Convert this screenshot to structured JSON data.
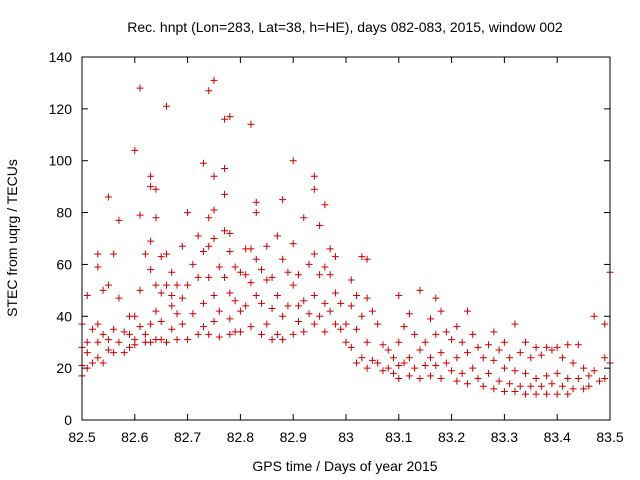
{
  "chart_data": {
    "type": "scatter",
    "title": "Rec. hnpt (Lon=283, Lat=38, h=HE), days 082-083, 2015, window 002",
    "xlabel": "GPS time / Days of year 2015",
    "ylabel": "STEC from uqrg / TECUs",
    "xlim": [
      82.5,
      83.5
    ],
    "ylim": [
      0,
      140
    ],
    "xticks": [
      82.5,
      82.6,
      82.7,
      82.8,
      82.9,
      83,
      83.1,
      83.2,
      83.3,
      83.4,
      83.5
    ],
    "xtick_labels": [
      "82.5",
      "82.6",
      "82.7",
      "82.8",
      "82.9",
      "83",
      "83.1",
      "83.2",
      "83.3",
      "83.4",
      "83.5"
    ],
    "yticks": [
      0,
      20,
      40,
      60,
      80,
      100,
      120,
      140
    ],
    "ytick_labels": [
      "0",
      "20",
      "40",
      "60",
      "80",
      "100",
      "120",
      "140"
    ],
    "marker": "+",
    "marker_color": "#cc0000",
    "series": [
      {
        "name": "STEC",
        "points": [
          [
            82.5,
            37
          ],
          [
            82.5,
            28
          ],
          [
            82.5,
            21
          ],
          [
            82.5,
            17
          ],
          [
            82.51,
            48
          ],
          [
            82.51,
            30
          ],
          [
            82.51,
            26
          ],
          [
            82.51,
            20
          ],
          [
            82.52,
            35
          ],
          [
            82.52,
            22
          ],
          [
            82.53,
            64
          ],
          [
            82.53,
            59
          ],
          [
            82.53,
            37
          ],
          [
            82.53,
            30
          ],
          [
            82.53,
            24
          ],
          [
            82.54,
            22
          ],
          [
            82.54,
            33
          ],
          [
            82.54,
            50
          ],
          [
            82.55,
            86
          ],
          [
            82.55,
            31
          ],
          [
            82.55,
            27
          ],
          [
            82.55,
            52
          ],
          [
            82.56,
            64
          ],
          [
            82.56,
            26
          ],
          [
            82.56,
            35
          ],
          [
            82.57,
            77
          ],
          [
            82.57,
            47
          ],
          [
            82.57,
            30
          ],
          [
            82.58,
            26
          ],
          [
            82.58,
            34
          ],
          [
            82.59,
            40
          ],
          [
            82.59,
            28
          ],
          [
            82.59,
            33
          ],
          [
            82.6,
            40
          ],
          [
            82.6,
            104
          ],
          [
            82.6,
            31
          ],
          [
            82.6,
            29
          ],
          [
            82.61,
            128
          ],
          [
            82.61,
            79
          ],
          [
            82.61,
            50
          ],
          [
            82.61,
            36
          ],
          [
            82.62,
            30
          ],
          [
            82.62,
            64
          ],
          [
            82.62,
            33
          ],
          [
            82.63,
            94
          ],
          [
            82.63,
            90
          ],
          [
            82.63,
            69
          ],
          [
            82.63,
            58
          ],
          [
            82.63,
            37
          ],
          [
            82.63,
            30
          ],
          [
            82.64,
            89
          ],
          [
            82.64,
            78
          ],
          [
            82.64,
            52
          ],
          [
            82.64,
            42
          ],
          [
            82.64,
            31
          ],
          [
            82.65,
            63
          ],
          [
            82.65,
            49
          ],
          [
            82.65,
            38
          ],
          [
            82.65,
            31
          ],
          [
            82.66,
            121
          ],
          [
            82.66,
            64
          ],
          [
            82.66,
            52
          ],
          [
            82.66,
            30
          ],
          [
            82.67,
            57
          ],
          [
            82.67,
            48
          ],
          [
            82.67,
            44
          ],
          [
            82.67,
            35
          ],
          [
            82.68,
            52
          ],
          [
            82.68,
            41
          ],
          [
            82.68,
            31
          ],
          [
            82.69,
            67
          ],
          [
            82.69,
            47
          ],
          [
            82.69,
            37
          ],
          [
            82.7,
            80
          ],
          [
            82.7,
            52
          ],
          [
            82.7,
            31
          ],
          [
            82.71,
            60
          ],
          [
            82.71,
            41
          ],
          [
            82.72,
            71
          ],
          [
            82.72,
            55
          ],
          [
            82.72,
            33
          ],
          [
            82.73,
            99
          ],
          [
            82.73,
            65
          ],
          [
            82.73,
            45
          ],
          [
            82.73,
            36
          ],
          [
            82.74,
            127
          ],
          [
            82.74,
            78
          ],
          [
            82.74,
            67
          ],
          [
            82.74,
            55
          ],
          [
            82.74,
            33
          ],
          [
            82.75,
            131
          ],
          [
            82.75,
            94
          ],
          [
            82.75,
            81
          ],
          [
            82.75,
            70
          ],
          [
            82.75,
            48
          ],
          [
            82.75,
            38
          ],
          [
            82.76,
            59
          ],
          [
            82.76,
            42
          ],
          [
            82.76,
            32
          ],
          [
            82.77,
            116
          ],
          [
            82.77,
            97
          ],
          [
            82.77,
            87
          ],
          [
            82.77,
            73
          ],
          [
            82.77,
            55
          ],
          [
            82.78,
            117
          ],
          [
            82.78,
            72
          ],
          [
            82.78,
            65
          ],
          [
            82.78,
            49
          ],
          [
            82.78,
            39
          ],
          [
            82.78,
            33
          ],
          [
            82.79,
            59
          ],
          [
            82.79,
            46
          ],
          [
            82.79,
            34
          ],
          [
            82.8,
            57
          ],
          [
            82.8,
            42
          ],
          [
            82.8,
            34
          ],
          [
            82.81,
            66
          ],
          [
            82.81,
            56
          ],
          [
            82.81,
            44
          ],
          [
            82.82,
            114
          ],
          [
            82.82,
            66
          ],
          [
            82.82,
            53
          ],
          [
            82.82,
            36
          ],
          [
            82.83,
            84
          ],
          [
            82.83,
            80
          ],
          [
            82.83,
            62
          ],
          [
            82.83,
            48
          ],
          [
            82.84,
            58
          ],
          [
            82.84,
            45
          ],
          [
            82.84,
            33
          ],
          [
            82.85,
            67
          ],
          [
            82.85,
            54
          ],
          [
            82.85,
            37
          ],
          [
            82.86,
            55
          ],
          [
            82.86,
            43
          ],
          [
            82.86,
            31
          ],
          [
            82.87,
            71
          ],
          [
            82.87,
            48
          ],
          [
            82.87,
            33
          ],
          [
            82.88,
            85
          ],
          [
            82.88,
            62
          ],
          [
            82.88,
            40
          ],
          [
            82.88,
            31
          ],
          [
            82.89,
            57
          ],
          [
            82.89,
            44
          ],
          [
            82.9,
            100
          ],
          [
            82.9,
            68
          ],
          [
            82.9,
            52
          ],
          [
            82.9,
            33
          ],
          [
            82.91,
            56
          ],
          [
            82.91,
            44
          ],
          [
            82.91,
            38
          ],
          [
            82.92,
            78
          ],
          [
            82.92,
            46
          ],
          [
            82.92,
            34
          ],
          [
            82.93,
            60
          ],
          [
            82.93,
            41
          ],
          [
            82.94,
            94
          ],
          [
            82.94,
            89
          ],
          [
            82.94,
            64
          ],
          [
            82.94,
            48
          ],
          [
            82.94,
            37
          ],
          [
            82.95,
            75
          ],
          [
            82.95,
            56
          ],
          [
            82.95,
            40
          ],
          [
            82.96,
            83
          ],
          [
            82.96,
            59
          ],
          [
            82.96,
            45
          ],
          [
            82.96,
            34
          ],
          [
            82.97,
            66
          ],
          [
            82.97,
            56
          ],
          [
            82.97,
            42
          ],
          [
            82.98,
            63
          ],
          [
            82.98,
            49
          ],
          [
            82.98,
            37
          ],
          [
            82.99,
            45
          ],
          [
            82.99,
            35
          ],
          [
            83.0,
            37
          ],
          [
            83.0,
            30
          ],
          [
            83.01,
            54
          ],
          [
            83.01,
            44
          ],
          [
            83.01,
            28
          ],
          [
            83.02,
            48
          ],
          [
            83.02,
            35
          ],
          [
            83.02,
            22
          ],
          [
            83.03,
            63
          ],
          [
            83.03,
            40
          ],
          [
            83.03,
            24
          ],
          [
            83.04,
            62
          ],
          [
            83.04,
            47
          ],
          [
            83.04,
            30
          ],
          [
            83.04,
            20
          ],
          [
            83.05,
            42
          ],
          [
            83.05,
            23
          ],
          [
            83.06,
            37
          ],
          [
            83.06,
            22
          ],
          [
            83.07,
            29
          ],
          [
            83.07,
            19
          ],
          [
            83.08,
            27
          ],
          [
            83.08,
            20
          ],
          [
            83.09,
            24
          ],
          [
            83.09,
            18
          ],
          [
            83.1,
            48
          ],
          [
            83.1,
            30
          ],
          [
            83.1,
            21
          ],
          [
            83.1,
            16
          ],
          [
            83.11,
            36
          ],
          [
            83.11,
            22
          ],
          [
            83.12,
            41
          ],
          [
            83.12,
            24
          ],
          [
            83.12,
            17
          ],
          [
            83.13,
            33
          ],
          [
            83.13,
            20
          ],
          [
            83.14,
            50
          ],
          [
            83.14,
            27
          ],
          [
            83.14,
            16
          ],
          [
            83.15,
            30
          ],
          [
            83.15,
            21
          ],
          [
            83.16,
            39
          ],
          [
            83.16,
            24
          ],
          [
            83.16,
            17
          ],
          [
            83.17,
            47
          ],
          [
            83.17,
            33
          ],
          [
            83.17,
            21
          ],
          [
            83.18,
            42
          ],
          [
            83.18,
            26
          ],
          [
            83.18,
            16
          ],
          [
            83.19,
            34
          ],
          [
            83.19,
            22
          ],
          [
            83.2,
            31
          ],
          [
            83.2,
            19
          ],
          [
            83.21,
            36
          ],
          [
            83.21,
            24
          ],
          [
            83.21,
            15
          ],
          [
            83.22,
            30
          ],
          [
            83.22,
            18
          ],
          [
            83.23,
            42
          ],
          [
            83.23,
            26
          ],
          [
            83.23,
            14
          ],
          [
            83.24,
            33
          ],
          [
            83.24,
            20
          ],
          [
            83.25,
            28
          ],
          [
            83.25,
            16
          ],
          [
            83.26,
            24
          ],
          [
            83.26,
            13
          ],
          [
            83.27,
            29
          ],
          [
            83.27,
            18
          ],
          [
            83.28,
            34
          ],
          [
            83.28,
            23
          ],
          [
            83.28,
            12
          ],
          [
            83.29,
            27
          ],
          [
            83.29,
            15
          ],
          [
            83.3,
            30
          ],
          [
            83.3,
            20
          ],
          [
            83.3,
            11
          ],
          [
            83.31,
            24
          ],
          [
            83.31,
            14
          ],
          [
            83.32,
            37
          ],
          [
            83.32,
            19
          ],
          [
            83.32,
            11
          ],
          [
            83.33,
            26
          ],
          [
            83.33,
            13
          ],
          [
            83.34,
            30
          ],
          [
            83.34,
            18
          ],
          [
            83.34,
            10
          ],
          [
            83.35,
            24
          ],
          [
            83.35,
            13
          ],
          [
            83.36,
            28
          ],
          [
            83.36,
            16
          ],
          [
            83.36,
            10
          ],
          [
            83.37,
            25
          ],
          [
            83.37,
            13
          ],
          [
            83.38,
            28
          ],
          [
            83.38,
            17
          ],
          [
            83.38,
            10
          ],
          [
            83.39,
            27
          ],
          [
            83.39,
            14
          ],
          [
            83.4,
            28
          ],
          [
            83.4,
            18
          ],
          [
            83.4,
            10
          ],
          [
            83.41,
            24
          ],
          [
            83.41,
            13
          ],
          [
            83.42,
            29
          ],
          [
            83.42,
            16
          ],
          [
            83.42,
            10
          ],
          [
            83.43,
            22
          ],
          [
            83.43,
            12
          ],
          [
            83.44,
            29
          ],
          [
            83.44,
            16
          ],
          [
            83.45,
            20
          ],
          [
            83.45,
            12
          ],
          [
            83.46,
            17
          ],
          [
            83.46,
            13
          ],
          [
            83.47,
            40
          ],
          [
            83.47,
            19
          ],
          [
            83.48,
            15
          ],
          [
            83.49,
            37
          ],
          [
            83.49,
            24
          ],
          [
            83.49,
            16
          ],
          [
            83.5,
            57
          ],
          [
            83.5,
            22
          ]
        ]
      }
    ]
  }
}
